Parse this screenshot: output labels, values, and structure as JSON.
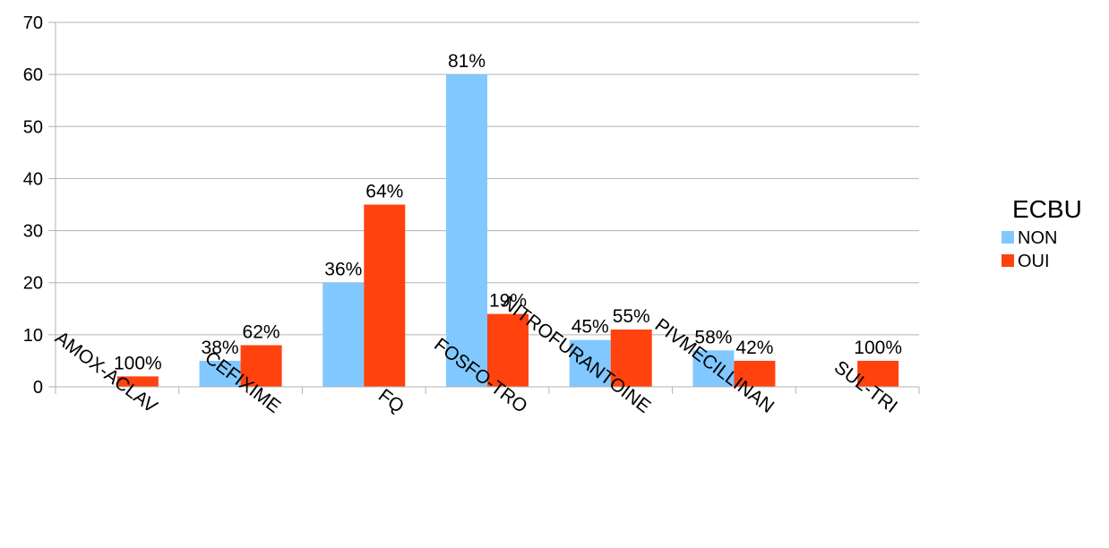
{
  "chart_data": {
    "type": "bar",
    "title": "",
    "xlabel": "",
    "ylabel": "",
    "ylim": [
      0,
      70
    ],
    "yticks": [
      "0",
      "10",
      "20",
      "30",
      "40",
      "50",
      "60",
      "70"
    ],
    "grid": true,
    "categories": [
      "AMOX-ACLAV",
      "CEFIXIME",
      "FQ",
      "FOSFO-TRO",
      "NITROFURANTOINE",
      "PIVMECILLINAN",
      "SUL-TRI"
    ],
    "series": [
      {
        "name": "NON",
        "color": "#80C8FF",
        "values": [
          0,
          5,
          20,
          60,
          9,
          7,
          0
        ],
        "labels": [
          "",
          "38%",
          "36%",
          "81%",
          "45%",
          "58%",
          ""
        ]
      },
      {
        "name": "OUI",
        "color": "#FF420E",
        "values": [
          2,
          8,
          35,
          14,
          11,
          5,
          5
        ],
        "labels": [
          "100%",
          "62%",
          "64%",
          "19%",
          "55%",
          "42%",
          "100%"
        ]
      }
    ],
    "legend": {
      "title": "ECBU",
      "position": "right"
    }
  }
}
